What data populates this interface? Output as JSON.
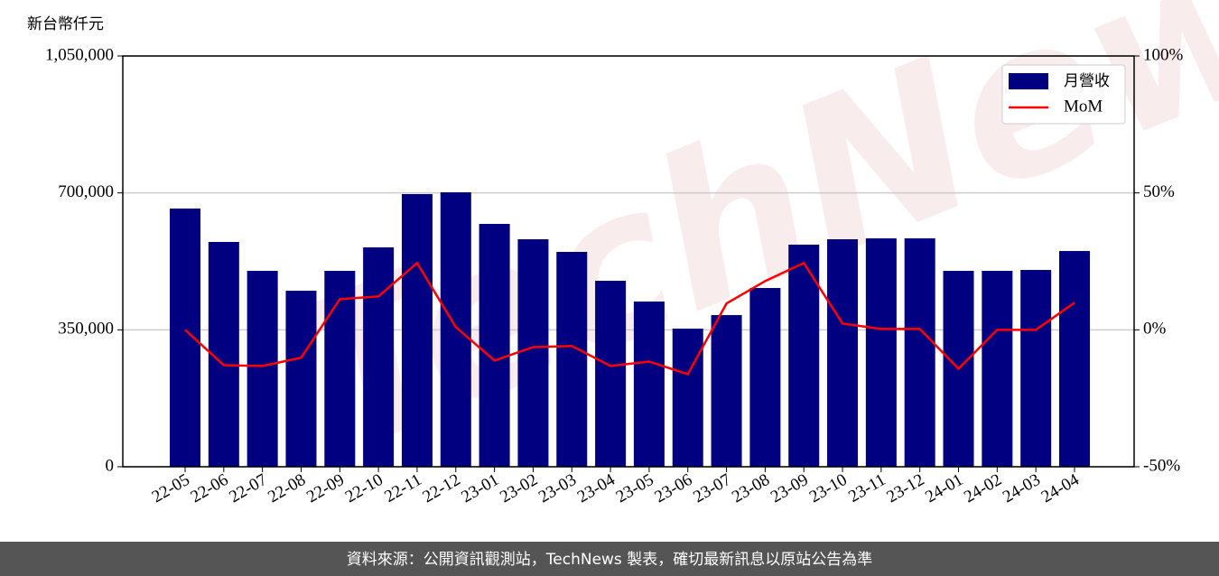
{
  "chart_data": {
    "type": "bar",
    "ylabel": "新台幣仟元",
    "watermark": "TechNews",
    "footer": "資料來源：公開資訊觀測站，TechNews 製表，確切最新訊息以原站公告為準",
    "categories": [
      "22-05",
      "22-06",
      "22-07",
      "22-08",
      "22-09",
      "22-10",
      "22-11",
      "22-12",
      "23-01",
      "23-02",
      "23-03",
      "23-04",
      "23-05",
      "23-06",
      "23-07",
      "23-08",
      "23-09",
      "23-10",
      "23-11",
      "23-12",
      "24-01",
      "24-02",
      "24-03",
      "24-04"
    ],
    "series": [
      {
        "name": "月營收",
        "color": "#000080",
        "values": [
          660000,
          574600,
          500800,
          450000,
          500800,
          560800,
          697000,
          701500,
          620800,
          581500,
          549200,
          475400,
          422300,
          353100,
          387700,
          456900,
          567700,
          581500,
          583800,
          583800,
          500800,
          500800,
          503100,
          551500
        ]
      },
      {
        "name": "MoM",
        "type": "line",
        "axis": "y2",
        "color": "#ff0000",
        "values": [
          0,
          -12.9,
          -13.2,
          -10.2,
          11.2,
          12.2,
          24.4,
          1,
          -11.2,
          -6.3,
          -5.9,
          -13.2,
          -11.6,
          -16.2,
          9.6,
          17.8,
          24.4,
          2.3,
          0.3,
          0.3,
          -14.2,
          0,
          0,
          9.9
        ]
      }
    ],
    "ylim": [
      0,
      1050000
    ],
    "yticks": [
      0,
      {
        "value": 350000,
        "label": "350,000"
      },
      {
        "value": 700000,
        "label": "700,000"
      },
      {
        "value": 1050000,
        "label": "1,050,000"
      }
    ],
    "y2lim": [
      -50,
      100
    ],
    "y2ticks": [
      {
        "value": -50,
        "label": "-50%"
      },
      {
        "value": 0,
        "label": "0%"
      },
      {
        "value": 50,
        "label": "50%"
      },
      {
        "value": 100,
        "label": "100%"
      }
    ],
    "grid": true,
    "legend": "upper right"
  }
}
